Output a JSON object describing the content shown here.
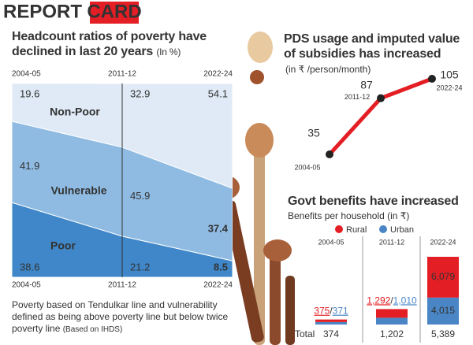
{
  "header": {
    "title_black": "REPORT",
    "title_red": "CARD"
  },
  "chart_data": [
    {
      "type": "area",
      "title": "Headcount ratios of poverty have declined in last 20 years",
      "unit": "(In %)",
      "categories": [
        "2004-05",
        "2011-12",
        "2022-24"
      ],
      "series": [
        {
          "name": "Poor",
          "color": "#3f87c8",
          "values": [
            38.6,
            21.2,
            8.5
          ]
        },
        {
          "name": "Vulnerable",
          "color": "#8fbbe2",
          "values": [
            41.9,
            45.9,
            37.4
          ]
        },
        {
          "name": "Non-Poor",
          "color": "#dfeaf6",
          "values": [
            19.6,
            32.9,
            54.1
          ]
        }
      ],
      "ylim": [
        0,
        100
      ],
      "note": "Poverty based on Tendulkar line and vulnerability defined as being above poverty line but below twice poverty line",
      "source": "(Based on IHDS)"
    },
    {
      "type": "line",
      "title": "PDS usage and imputed value of subsidies has increased",
      "subtitle": "(in ₹ /person/month)",
      "categories": [
        "2004-05",
        "2011-12",
        "2022-24"
      ],
      "values": [
        35,
        87,
        105
      ],
      "color": "#e31e24"
    },
    {
      "type": "bar",
      "title": "Govt benefits have increased",
      "subtitle": "Benefits per household (in ₹)",
      "categories": [
        "2004-05",
        "2011-12",
        "2022-24"
      ],
      "series": [
        {
          "name": "Rural",
          "color": "#e31e24",
          "values": [
            375,
            1292,
            6079
          ],
          "value_labels": [
            "375",
            "1,292",
            "6,079"
          ]
        },
        {
          "name": "Urban",
          "color": "#4a86c5",
          "values": [
            371,
            1010,
            4015
          ],
          "value_labels": [
            "371",
            "1,010",
            "4,015"
          ]
        }
      ],
      "label_separator": "/",
      "total_label": "Total",
      "totals": [
        374,
        1202,
        5389
      ],
      "total_labels": [
        "374",
        "1,202",
        "5,389"
      ]
    }
  ]
}
